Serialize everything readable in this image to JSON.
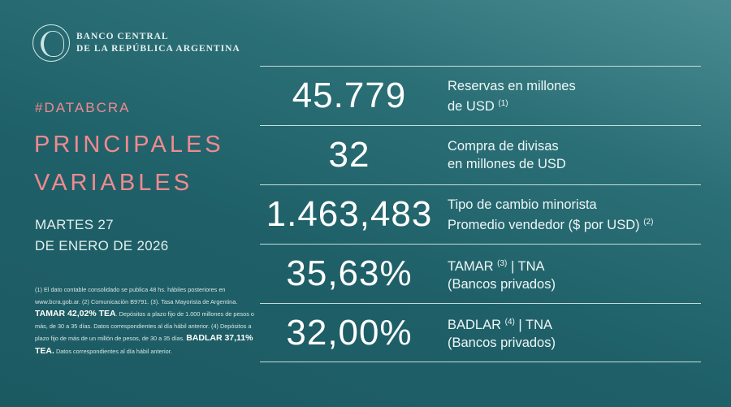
{
  "logo": {
    "line1": "BANCO CENTRAL",
    "line2": "DE LA REPÚBLICA ARGENTINA"
  },
  "hashtag": "#DATABCRA",
  "title": {
    "line1": "PRINCIPALES",
    "line2": "VARIABLES"
  },
  "date": {
    "line1": "MARTES 27",
    "line2": "DE ENERO DE 2026"
  },
  "notes": {
    "p1": "(1) El dato contable consolidado se publica 48 hs. hábiles posteriores en www.bcra.gob.ar. (2) Comunicación B9791. (3). Tasa Mayorista de Argentina. ",
    "b1": "TAMAR 42,02% TEA",
    "p2": ". Depósitos a plazo fijo de 1.000 millones de pesos o más, de 30 a 35 días. Datos correspondientes al día hábil anterior. (4) Depósitos a plazo fijo de más de un millón de pesos, de 30 a 35 días. ",
    "b2": "BADLAR 37,11% TEA.",
    "p3": " Datos correspondientes al día hábil anterior."
  },
  "rows": [
    {
      "value": "45.779",
      "l1": {
        "pre": "Reservas en millones",
        "sup": "",
        "post": ""
      },
      "l2": {
        "pre": "de USD ",
        "sup": "(1)",
        "post": ""
      }
    },
    {
      "value": "32",
      "l1": {
        "pre": "Compra de divisas",
        "sup": "",
        "post": ""
      },
      "l2": {
        "pre": "en millones de USD",
        "sup": "",
        "post": ""
      }
    },
    {
      "value": "1.463,483",
      "l1": {
        "pre": "Tipo de cambio minorista",
        "sup": "",
        "post": ""
      },
      "l2": {
        "pre": "Promedio vendedor ($ por USD) ",
        "sup": "(2)",
        "post": ""
      }
    },
    {
      "value": "35,63%",
      "l1": {
        "pre": "TAMAR ",
        "sup": "(3)",
        "post": " | TNA"
      },
      "l2": {
        "pre": "(Bancos privados)",
        "sup": "",
        "post": ""
      }
    },
    {
      "value": "32,00%",
      "l1": {
        "pre": "BADLAR ",
        "sup": "(4)",
        "post": " | TNA"
      },
      "l2": {
        "pre": "(Bancos privados)",
        "sup": "",
        "post": ""
      }
    }
  ]
}
